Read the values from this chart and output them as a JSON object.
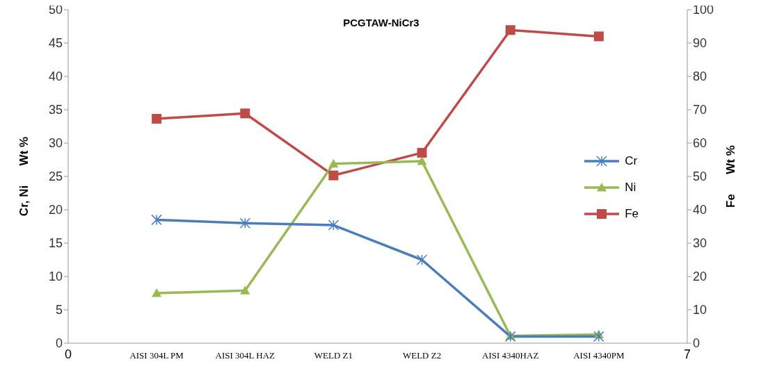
{
  "chart_data": {
    "type": "line",
    "title": "PCGTAW-NiCr3",
    "ylabel": "Cr, Ni      Wt %",
    "y2label": "Fe      Wt %",
    "categories": [
      "0",
      "AISI 304L PM",
      "AISI 304L HAZ",
      "WELD Z1",
      "WELD Z2",
      "AISI 4340HAZ",
      "AISI 4340PM",
      "7"
    ],
    "ylim": [
      0,
      50
    ],
    "yticks": [
      0,
      5,
      10,
      15,
      20,
      25,
      30,
      35,
      40,
      45,
      50
    ],
    "y2lim": [
      0,
      100
    ],
    "y2ticks": [
      0,
      10,
      20,
      30,
      40,
      50,
      60,
      70,
      80,
      90,
      100
    ],
    "legend": "right",
    "series": [
      {
        "name": "Cr",
        "color": "#4a7ebb",
        "marker": "cross",
        "values": [
          null,
          18.5,
          18.0,
          17.7,
          12.5,
          1.0,
          1.0,
          null
        ]
      },
      {
        "name": "Ni",
        "color": "#98b954",
        "marker": "triangle",
        "values": [
          null,
          7.5,
          7.9,
          26.9,
          27.3,
          1.1,
          1.3,
          null
        ]
      },
      {
        "name": "Fe",
        "color": "#be4b48",
        "marker": "square",
        "axis": "y2",
        "values": [
          null,
          67.3,
          68.9,
          50.3,
          57.1,
          93.9,
          92.0,
          null
        ]
      }
    ]
  }
}
